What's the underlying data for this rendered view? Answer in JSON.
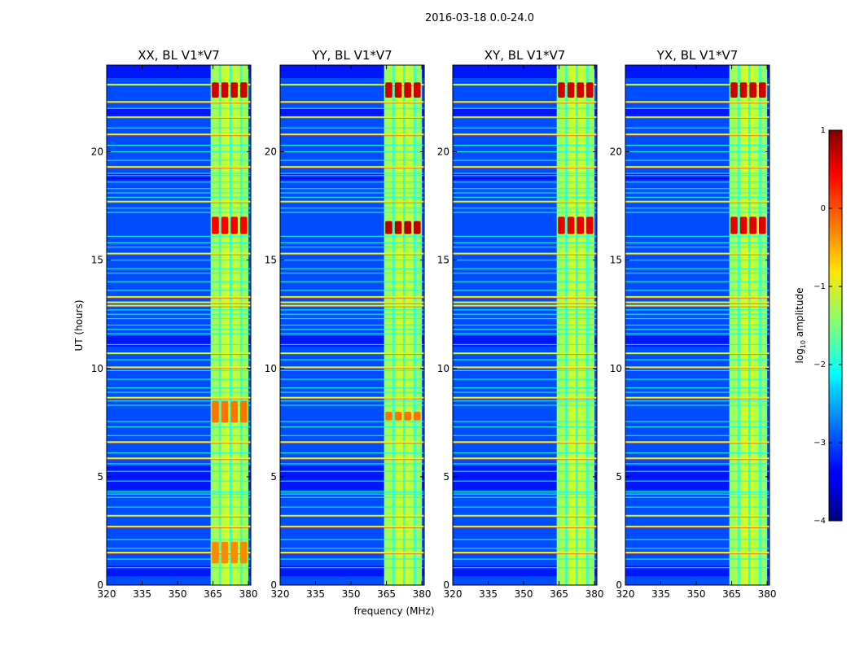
{
  "chart_data": {
    "type": "heatmap",
    "suptitle": "2016-03-18 0.0-24.0",
    "xlabel": "frequency (MHz)",
    "ylabel": "UT (hours)",
    "xlim": [
      320,
      381
    ],
    "ylim": [
      0,
      24
    ],
    "x_ticks": [
      320,
      335,
      350,
      365,
      380
    ],
    "y_ticks": [
      0,
      5,
      10,
      15,
      20
    ],
    "x_tick_labels": [
      "320",
      "335",
      "350",
      "365",
      "380"
    ],
    "y_tick_labels": [
      "0",
      "5",
      "10",
      "15",
      "20"
    ],
    "colormap": "jet",
    "colorbar": {
      "label": "log",
      "label_sub": "10",
      "label_tail": " amplitude",
      "range": [
        -4,
        1
      ],
      "ticks": [
        1,
        0,
        -1,
        -2,
        -3,
        -4
      ],
      "tick_labels": [
        "1",
        "0",
        "−1",
        "−2",
        "−3",
        "−4"
      ]
    },
    "panels": [
      {
        "title": "XX, BL V1*V7",
        "signal_band_mhz": [
          364,
          380
        ],
        "rfi_bursts": [
          {
            "ut_start": 22.5,
            "ut_end": 23.2,
            "log_amp": 0.6
          },
          {
            "ut_start": 16.2,
            "ut_end": 17.0,
            "log_amp": 0.4
          },
          {
            "ut_start": 7.5,
            "ut_end": 8.5,
            "log_amp": -0.2
          },
          {
            "ut_start": 1.0,
            "ut_end": 2.0,
            "log_amp": -0.3
          }
        ]
      },
      {
        "title": "YY, BL V1*V7",
        "signal_band_mhz": [
          364,
          380
        ],
        "rfi_bursts": [
          {
            "ut_start": 22.5,
            "ut_end": 23.2,
            "log_amp": 0.6
          },
          {
            "ut_start": 16.2,
            "ut_end": 16.8,
            "log_amp": 0.7
          },
          {
            "ut_start": 7.6,
            "ut_end": 8.0,
            "log_amp": -0.2
          }
        ]
      },
      {
        "title": "XY, BL V1*V7",
        "signal_band_mhz": [
          364,
          380
        ],
        "rfi_bursts": [
          {
            "ut_start": 22.5,
            "ut_end": 23.2,
            "log_amp": 0.6
          },
          {
            "ut_start": 16.2,
            "ut_end": 17.0,
            "log_amp": 0.5
          }
        ]
      },
      {
        "title": "YX, BL V1*V7",
        "signal_band_mhz": [
          364,
          380
        ],
        "rfi_bursts": [
          {
            "ut_start": 22.5,
            "ut_end": 23.2,
            "log_amp": 0.6
          },
          {
            "ut_start": 16.2,
            "ut_end": 17.0,
            "log_amp": 0.5
          }
        ]
      }
    ],
    "channel_separators_mhz": [
      368,
      372.5,
      377
    ],
    "bright_ut_lines": [
      1.5,
      2.7,
      3.2,
      5.85,
      6.6,
      8.65,
      10.05,
      10.7,
      12.9,
      13.05,
      13.3,
      15.3,
      17.7,
      19.3,
      20.8,
      21.6,
      22.3,
      23.1
    ],
    "faint_ut_lines": [
      0.8,
      1.2,
      1.7,
      2.1,
      3.6,
      4.05,
      4.2,
      4.3,
      4.8,
      5.25,
      5.6,
      6.1,
      6.9,
      7.3,
      7.55,
      8.3,
      8.5,
      8.9,
      9.1,
      9.5,
      9.9,
      10.4,
      11.1,
      11.6,
      11.8,
      12.0,
      12.3,
      12.5,
      12.7,
      13.6,
      14.0,
      14.4,
      14.6,
      15.0,
      15.6,
      15.8,
      16.1,
      17.2,
      17.4,
      17.9,
      18.1,
      18.3,
      18.6,
      18.9,
      19.0,
      19.6,
      20.0,
      20.3,
      21.1,
      22.0
    ]
  }
}
